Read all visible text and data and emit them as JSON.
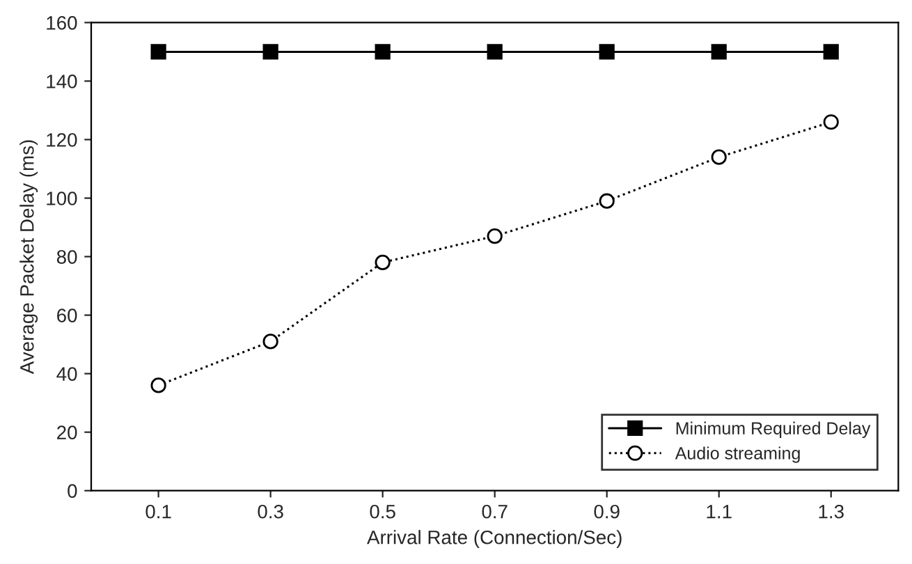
{
  "chart_data": {
    "type": "line",
    "xlabel": "Arrival Rate (Connection/Sec)",
    "ylabel": "Average Packet Delay (ms)",
    "categories": [
      "0.1",
      "0.3",
      "0.5",
      "0.7",
      "0.9",
      "1.1",
      "1.3"
    ],
    "series": [
      {
        "name": "Minimum Required Delay",
        "color": "#000000",
        "marker": "square",
        "line_style": "solid",
        "values": [
          150,
          150,
          150,
          150,
          150,
          150,
          150
        ]
      },
      {
        "name": "Audio streaming",
        "color": "#000000",
        "marker": "circle",
        "line_style": "dotted",
        "values": [
          36,
          51,
          78,
          87,
          99,
          114,
          126
        ]
      }
    ],
    "ylim": [
      0,
      160
    ],
    "yticks": [
      0,
      20,
      40,
      60,
      80,
      100,
      120,
      140,
      160
    ],
    "grid": false,
    "legend": "bottom right"
  }
}
